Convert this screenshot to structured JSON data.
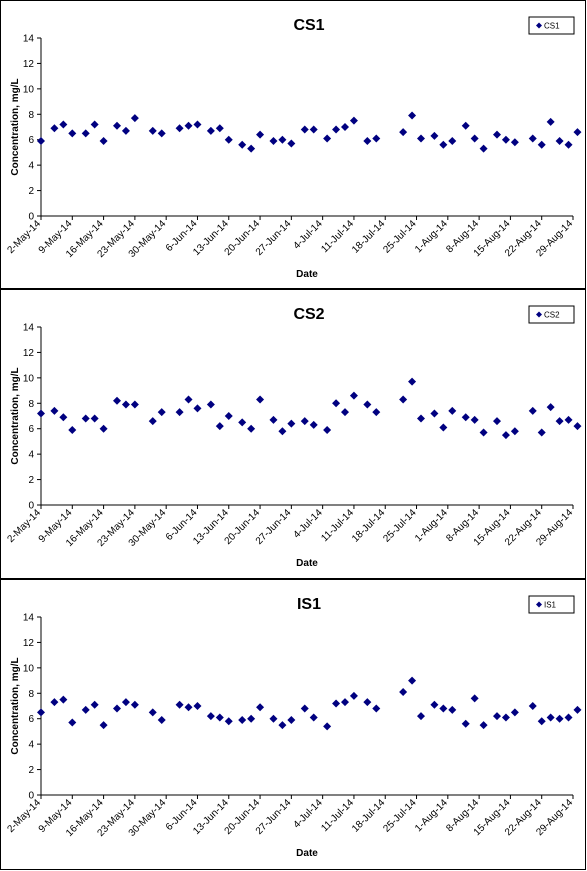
{
  "colors": {
    "marker": "#000080",
    "axis": "#000000",
    "background": "#ffffff"
  },
  "chart_data": [
    {
      "type": "scatter",
      "title": "CS1",
      "xlabel": "Date",
      "ylabel": "Concentration, mg/L",
      "ylim": [
        0,
        14
      ],
      "yticks": [
        "0",
        "2",
        "4",
        "6",
        "8",
        "10",
        "12",
        "14"
      ],
      "xticks": [
        "2-May-14",
        "9-May-14",
        "16-May-14",
        "23-May-14",
        "30-May-14",
        "6-Jun-14",
        "13-Jun-14",
        "20-Jun-14",
        "27-Jun-14",
        "4-Jul-14",
        "11-Jul-14",
        "18-Jul-14",
        "25-Jul-14",
        "1-Aug-14",
        "8-Aug-14",
        "15-Aug-14",
        "22-Aug-14",
        "29-Aug-14"
      ],
      "xlim": [
        "2014-05-02",
        "2014-08-29"
      ],
      "grid": false,
      "legend": "top-right",
      "series": [
        {
          "name": "CS1",
          "marker": "diamond",
          "x": [
            "2014-05-02",
            "2014-05-05",
            "2014-05-07",
            "2014-05-09",
            "2014-05-12",
            "2014-05-14",
            "2014-05-16",
            "2014-05-19",
            "2014-05-21",
            "2014-05-23",
            "2014-05-27",
            "2014-05-29",
            "2014-06-02",
            "2014-06-04",
            "2014-06-06",
            "2014-06-09",
            "2014-06-11",
            "2014-06-13",
            "2014-06-16",
            "2014-06-18",
            "2014-06-20",
            "2014-06-23",
            "2014-06-25",
            "2014-06-27",
            "2014-06-30",
            "2014-07-02",
            "2014-07-05",
            "2014-07-07",
            "2014-07-09",
            "2014-07-11",
            "2014-07-14",
            "2014-07-16",
            "2014-07-22",
            "2014-07-24",
            "2014-07-26",
            "2014-07-29",
            "2014-07-31",
            "2014-08-02",
            "2014-08-05",
            "2014-08-07",
            "2014-08-09",
            "2014-08-12",
            "2014-08-14",
            "2014-08-16",
            "2014-08-20",
            "2014-08-22",
            "2014-08-24",
            "2014-08-26",
            "2014-08-28",
            "2014-08-30"
          ],
          "y": [
            5.9,
            6.9,
            7.2,
            6.5,
            6.5,
            7.2,
            5.9,
            7.1,
            6.7,
            7.7,
            6.7,
            6.5,
            6.9,
            7.1,
            7.2,
            6.7,
            6.9,
            6.0,
            5.6,
            5.3,
            6.4,
            5.9,
            6.0,
            5.7,
            6.8,
            6.8,
            6.1,
            6.8,
            7.0,
            7.5,
            5.9,
            6.1,
            6.6,
            7.9,
            6.1,
            6.3,
            5.6,
            5.9,
            7.1,
            6.1,
            5.3,
            6.4,
            6.0,
            5.8,
            6.1,
            5.6,
            7.4,
            5.9,
            5.6,
            6.6
          ]
        }
      ]
    },
    {
      "type": "scatter",
      "title": "CS2",
      "xlabel": "Date",
      "ylabel": "Concentration, mg/L",
      "ylim": [
        0,
        14
      ],
      "yticks": [
        "0",
        "2",
        "4",
        "6",
        "8",
        "10",
        "12",
        "14"
      ],
      "xticks": [
        "2-May-14",
        "9-May-14",
        "16-May-14",
        "23-May-14",
        "30-May-14",
        "6-Jun-14",
        "13-Jun-14",
        "20-Jun-14",
        "27-Jun-14",
        "4-Jul-14",
        "11-Jul-14",
        "18-Jul-14",
        "25-Jul-14",
        "1-Aug-14",
        "8-Aug-14",
        "15-Aug-14",
        "22-Aug-14",
        "29-Aug-14"
      ],
      "xlim": [
        "2014-05-02",
        "2014-08-29"
      ],
      "grid": false,
      "legend": "top-right",
      "series": [
        {
          "name": "CS2",
          "marker": "diamond",
          "x": [
            "2014-05-02",
            "2014-05-05",
            "2014-05-07",
            "2014-05-09",
            "2014-05-12",
            "2014-05-14",
            "2014-05-16",
            "2014-05-19",
            "2014-05-21",
            "2014-05-23",
            "2014-05-27",
            "2014-05-29",
            "2014-06-02",
            "2014-06-04",
            "2014-06-06",
            "2014-06-09",
            "2014-06-11",
            "2014-06-13",
            "2014-06-16",
            "2014-06-18",
            "2014-06-20",
            "2014-06-23",
            "2014-06-25",
            "2014-06-27",
            "2014-06-30",
            "2014-07-02",
            "2014-07-05",
            "2014-07-07",
            "2014-07-09",
            "2014-07-11",
            "2014-07-14",
            "2014-07-16",
            "2014-07-22",
            "2014-07-24",
            "2014-07-26",
            "2014-07-29",
            "2014-07-31",
            "2014-08-02",
            "2014-08-05",
            "2014-08-07",
            "2014-08-09",
            "2014-08-12",
            "2014-08-14",
            "2014-08-16",
            "2014-08-20",
            "2014-08-22",
            "2014-08-24",
            "2014-08-26",
            "2014-08-28",
            "2014-08-30"
          ],
          "y": [
            7.2,
            7.4,
            6.9,
            5.9,
            6.8,
            6.8,
            6.0,
            8.2,
            7.9,
            7.9,
            6.6,
            7.3,
            7.3,
            8.3,
            7.6,
            7.9,
            6.2,
            7.0,
            6.5,
            6.0,
            8.3,
            6.7,
            5.8,
            6.4,
            6.6,
            6.3,
            5.9,
            8.0,
            7.3,
            8.6,
            7.9,
            7.3,
            8.3,
            9.7,
            6.8,
            7.2,
            6.1,
            7.4,
            6.9,
            6.7,
            5.7,
            6.6,
            5.5,
            5.8,
            7.4,
            5.7,
            7.7,
            6.6,
            6.7,
            6.2
          ]
        }
      ]
    },
    {
      "type": "scatter",
      "title": "IS1",
      "xlabel": "Date",
      "ylabel": "Concentration, mg/L",
      "ylim": [
        0,
        14
      ],
      "yticks": [
        "0",
        "2",
        "4",
        "6",
        "8",
        "10",
        "12",
        "14"
      ],
      "xticks": [
        "2-May-14",
        "9-May-14",
        "16-May-14",
        "23-May-14",
        "30-May-14",
        "6-Jun-14",
        "13-Jun-14",
        "20-Jun-14",
        "27-Jun-14",
        "4-Jul-14",
        "11-Jul-14",
        "18-Jul-14",
        "25-Jul-14",
        "1-Aug-14",
        "8-Aug-14",
        "15-Aug-14",
        "22-Aug-14",
        "29-Aug-14"
      ],
      "xlim": [
        "2014-05-02",
        "2014-08-29"
      ],
      "grid": false,
      "legend": "top-right",
      "series": [
        {
          "name": "IS1",
          "marker": "diamond",
          "x": [
            "2014-05-02",
            "2014-05-05",
            "2014-05-07",
            "2014-05-09",
            "2014-05-12",
            "2014-05-14",
            "2014-05-16",
            "2014-05-19",
            "2014-05-21",
            "2014-05-23",
            "2014-05-27",
            "2014-05-29",
            "2014-06-02",
            "2014-06-04",
            "2014-06-06",
            "2014-06-09",
            "2014-06-11",
            "2014-06-13",
            "2014-06-16",
            "2014-06-18",
            "2014-06-20",
            "2014-06-23",
            "2014-06-25",
            "2014-06-27",
            "2014-06-30",
            "2014-07-02",
            "2014-07-05",
            "2014-07-07",
            "2014-07-09",
            "2014-07-11",
            "2014-07-14",
            "2014-07-16",
            "2014-07-22",
            "2014-07-24",
            "2014-07-26",
            "2014-07-29",
            "2014-07-31",
            "2014-08-02",
            "2014-08-05",
            "2014-08-07",
            "2014-08-09",
            "2014-08-12",
            "2014-08-14",
            "2014-08-16",
            "2014-08-20",
            "2014-08-22",
            "2014-08-24",
            "2014-08-26",
            "2014-08-28",
            "2014-08-30"
          ],
          "y": [
            6.5,
            7.3,
            7.5,
            5.7,
            6.7,
            7.1,
            5.5,
            6.8,
            7.3,
            7.1,
            6.5,
            5.9,
            7.1,
            6.9,
            7.0,
            6.2,
            6.1,
            5.8,
            5.9,
            6.0,
            6.9,
            6.0,
            5.5,
            5.9,
            6.8,
            6.1,
            5.4,
            7.2,
            7.3,
            7.8,
            7.3,
            6.8,
            8.1,
            9.0,
            6.2,
            7.1,
            6.8,
            6.7,
            5.6,
            7.6,
            5.5,
            6.2,
            6.1,
            6.5,
            7.0,
            5.8,
            6.1,
            6.0,
            6.1,
            6.7
          ]
        }
      ]
    }
  ]
}
